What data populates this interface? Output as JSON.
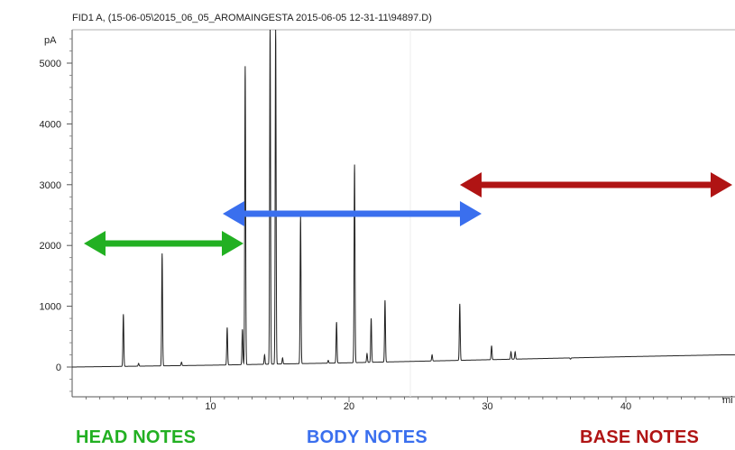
{
  "chart_data": {
    "type": "line",
    "title": "FID1 A,  (15-06-05\\2015_06_05_AROMAINGESTA 2015-06-05 12-31-11\\94897.D)",
    "ylabel": "pA",
    "xlabel": "mi",
    "xlim": [
      0,
      47
    ],
    "ylim": [
      -500,
      5500
    ],
    "xticks": [
      10,
      20,
      30,
      40
    ],
    "yticks": [
      0,
      1000,
      2000,
      3000,
      4000,
      5000
    ],
    "grid": false,
    "baseline": [
      [
        0,
        0
      ],
      [
        10,
        30
      ],
      [
        20,
        70
      ],
      [
        30,
        120
      ],
      [
        40,
        170
      ],
      [
        47,
        200
      ]
    ],
    "peaks": [
      {
        "x": 3.7,
        "y": 870
      },
      {
        "x": 4.8,
        "y": 60
      },
      {
        "x": 6.5,
        "y": 1870
      },
      {
        "x": 7.9,
        "y": 80
      },
      {
        "x": 11.2,
        "y": 650
      },
      {
        "x": 12.3,
        "y": 620
      },
      {
        "x": 12.5,
        "y": 4950
      },
      {
        "x": 13.9,
        "y": 200
      },
      {
        "x": 14.3,
        "y": 5600
      },
      {
        "x": 14.7,
        "y": 5600
      },
      {
        "x": 15.2,
        "y": 150
      },
      {
        "x": 16.5,
        "y": 2480
      },
      {
        "x": 18.5,
        "y": 110
      },
      {
        "x": 19.1,
        "y": 740
      },
      {
        "x": 20.4,
        "y": 3330
      },
      {
        "x": 21.3,
        "y": 220
      },
      {
        "x": 21.6,
        "y": 800
      },
      {
        "x": 22.6,
        "y": 1100
      },
      {
        "x": 26.0,
        "y": 200
      },
      {
        "x": 28.0,
        "y": 1040
      },
      {
        "x": 30.3,
        "y": 350
      },
      {
        "x": 31.7,
        "y": 250
      },
      {
        "x": 32.0,
        "y": 250
      },
      {
        "x": 36.0,
        "y": 130
      }
    ],
    "annotations": [
      {
        "label": "HEAD NOTES",
        "color": "#22b022",
        "x_range": [
          1,
          12
        ]
      },
      {
        "label": "BODY NOTES",
        "color": "#3a6fee",
        "x_range": [
          11,
          29
        ]
      },
      {
        "label": "BASE NOTES",
        "color": "#b01414",
        "x_range": [
          28,
          47
        ]
      }
    ]
  }
}
